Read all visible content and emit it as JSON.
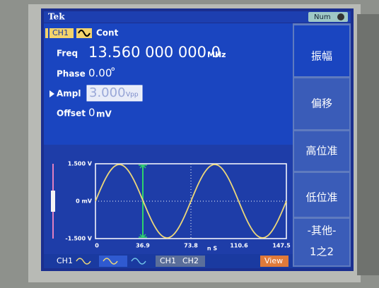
{
  "header": {
    "brand": "Tek",
    "mode": "Num"
  },
  "channel": {
    "name": "CH1",
    "mode": "Cont"
  },
  "params": [
    {
      "label": "Freq",
      "value": "13.560 000 000 0",
      "unit": "MHz"
    },
    {
      "label": "Phase",
      "value": "0.00",
      "unit": "°"
    },
    {
      "label": "Ampl",
      "value": "3.000",
      "unit": "Vpp"
    },
    {
      "label": "Offset",
      "value": "0",
      "unit": "mV"
    }
  ],
  "menu": [
    "振幅",
    "偏移",
    "高位准",
    "低位准",
    "-其他-"
  ],
  "page": "1之2",
  "plot": {
    "y_labels": [
      "1.500 V",
      "0 mV",
      "-1.500 V"
    ],
    "x_labels": [
      "0",
      "36.9",
      "73.8",
      "110.6",
      "147.5"
    ],
    "x_unit": "n S"
  },
  "tabs": [
    "CH1",
    "CH1",
    "CH2",
    "View"
  ]
}
